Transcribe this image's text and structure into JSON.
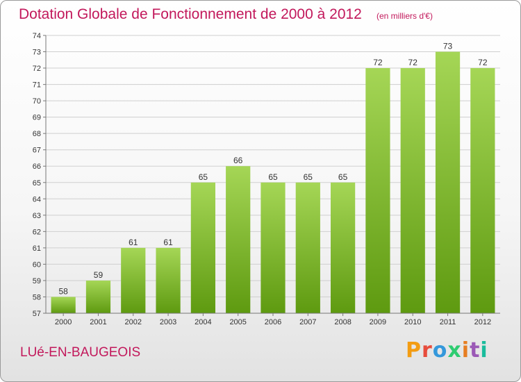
{
  "title": "Dotation Globale de Fonctionnement de 2000 à 2012",
  "subtitle": "(en milliers d'€)",
  "commune": "LUé-EN-BAUGEOIS",
  "brand": {
    "letters": [
      "P",
      "r",
      "o",
      "x",
      "i",
      "t",
      "i"
    ],
    "colors": [
      "#f39c12",
      "#e74c3c",
      "#3498db",
      "#2ecc71",
      "#e67e22",
      "#9b59b6",
      "#1abc9c"
    ]
  },
  "colors": {
    "bar_light": "#a5d656",
    "bar_dark": "#5e9a10",
    "text_accent": "#c2185b",
    "grid": "#cfcfcf"
  },
  "chart_data": {
    "type": "bar",
    "categories": [
      "2000",
      "2001",
      "2002",
      "2003",
      "2004",
      "2005",
      "2006",
      "2007",
      "2008",
      "2009",
      "2010",
      "2011",
      "2012"
    ],
    "values": [
      58,
      59,
      61,
      61,
      65,
      66,
      65,
      65,
      65,
      72,
      72,
      73,
      72
    ],
    "yticks": [
      57,
      58,
      59,
      60,
      61,
      62,
      63,
      64,
      65,
      66,
      67,
      68,
      69,
      70,
      71,
      72,
      73,
      74
    ],
    "ylim": [
      57,
      74
    ],
    "grid": true
  }
}
